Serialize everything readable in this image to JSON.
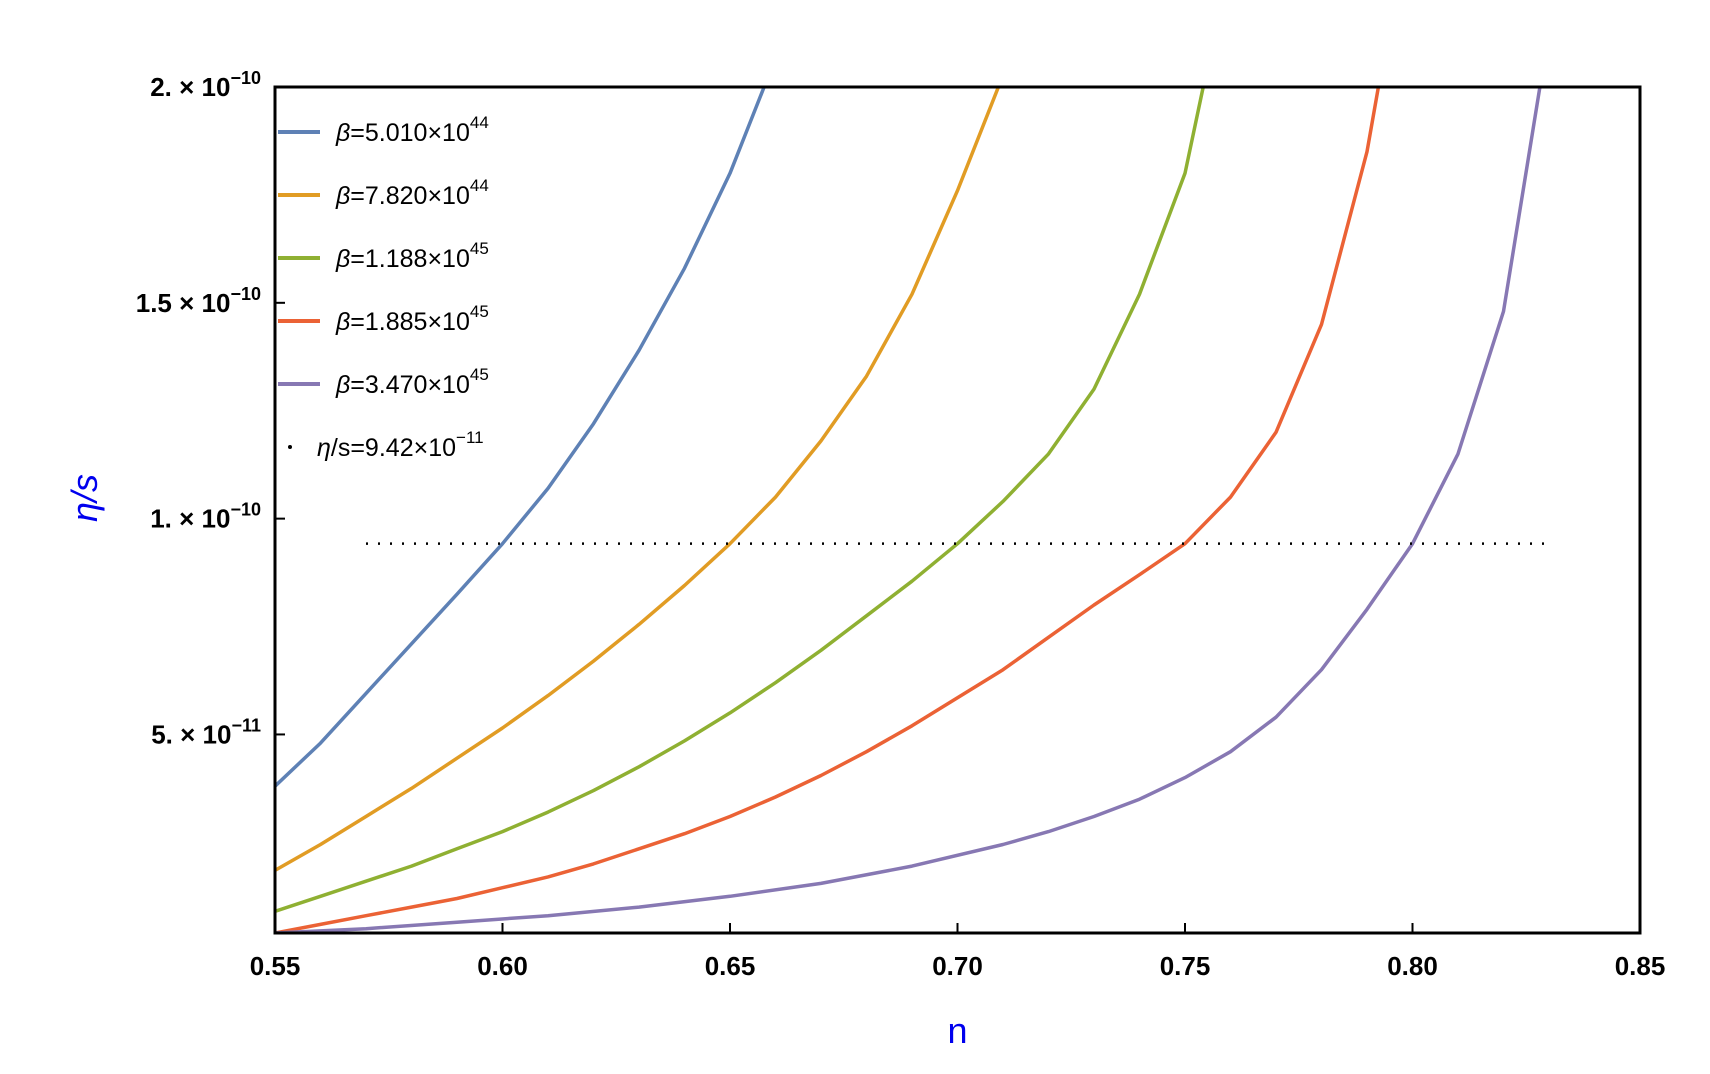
{
  "chart_data": {
    "type": "line",
    "xlabel": "n",
    "ylabel": "η/s",
    "xlim": [
      0.55,
      0.85
    ],
    "ylim": [
      4e-12,
      2e-10
    ],
    "x_ticks": [
      {
        "value": 0.55,
        "label": "0.55"
      },
      {
        "value": 0.6,
        "label": "0.60"
      },
      {
        "value": 0.65,
        "label": "0.65"
      },
      {
        "value": 0.7,
        "label": "0.70"
      },
      {
        "value": 0.75,
        "label": "0.75"
      },
      {
        "value": 0.8,
        "label": "0.80"
      },
      {
        "value": 0.85,
        "label": "0.85"
      }
    ],
    "y_ticks": [
      {
        "value": 5e-11,
        "mantissa": "5.",
        "exponent": "−11"
      },
      {
        "value": 1e-10,
        "mantissa": "1.",
        "exponent": "−10"
      },
      {
        "value": 1.5e-10,
        "mantissa": "1.5",
        "exponent": "−10"
      },
      {
        "value": 2e-10,
        "mantissa": "2.",
        "exponent": "−10"
      }
    ],
    "grid": false,
    "legend_position": "top-left",
    "series": [
      {
        "name": "β=5.010×10^44",
        "label_base": "=5.010×10",
        "label_exp": "44",
        "color": "#5e81b5",
        "points": [
          [
            0.55,
            3.8e-11
          ],
          [
            0.56,
            4.8e-11
          ],
          [
            0.57,
            5.95e-11
          ],
          [
            0.58,
            7.1e-11
          ],
          [
            0.59,
            8.25e-11
          ],
          [
            0.6,
            9.42e-11
          ],
          [
            0.61,
            1.07e-10
          ],
          [
            0.62,
            1.22e-10
          ],
          [
            0.63,
            1.39e-10
          ],
          [
            0.64,
            1.58e-10
          ],
          [
            0.65,
            1.8e-10
          ],
          [
            0.6575,
            2e-10
          ]
        ]
      },
      {
        "name": "β=7.820×10^44",
        "label_base": "=7.820×10",
        "label_exp": "44",
        "color": "#e19c24",
        "points": [
          [
            0.55,
            1.85e-11
          ],
          [
            0.56,
            2.45e-11
          ],
          [
            0.57,
            3.1e-11
          ],
          [
            0.58,
            3.75e-11
          ],
          [
            0.59,
            4.45e-11
          ],
          [
            0.6,
            5.15e-11
          ],
          [
            0.61,
            5.9e-11
          ],
          [
            0.62,
            6.7e-11
          ],
          [
            0.63,
            7.55e-11
          ],
          [
            0.64,
            8.45e-11
          ],
          [
            0.65,
            9.42e-11
          ],
          [
            0.66,
            1.05e-10
          ],
          [
            0.67,
            1.18e-10
          ],
          [
            0.68,
            1.33e-10
          ],
          [
            0.69,
            1.52e-10
          ],
          [
            0.7,
            1.76e-10
          ],
          [
            0.709,
            2e-10
          ]
        ]
      },
      {
        "name": "β=1.188×10^45",
        "label_base": "=1.188×10",
        "label_exp": "45",
        "color": "#8fb032",
        "points": [
          [
            0.55,
            9e-12
          ],
          [
            0.56,
            1.25e-11
          ],
          [
            0.57,
            1.6e-11
          ],
          [
            0.58,
            1.95e-11
          ],
          [
            0.59,
            2.35e-11
          ],
          [
            0.6,
            2.75e-11
          ],
          [
            0.61,
            3.2e-11
          ],
          [
            0.62,
            3.7e-11
          ],
          [
            0.63,
            4.25e-11
          ],
          [
            0.64,
            4.85e-11
          ],
          [
            0.65,
            5.5e-11
          ],
          [
            0.66,
            6.2e-11
          ],
          [
            0.67,
            6.95e-11
          ],
          [
            0.68,
            7.75e-11
          ],
          [
            0.69,
            8.55e-11
          ],
          [
            0.7,
            9.42e-11
          ],
          [
            0.71,
            1.04e-10
          ],
          [
            0.72,
            1.15e-10
          ],
          [
            0.73,
            1.3e-10
          ],
          [
            0.74,
            1.52e-10
          ],
          [
            0.75,
            1.8e-10
          ],
          [
            0.754,
            2e-10
          ]
        ]
      },
      {
        "name": "β=1.885×10^45",
        "label_base": "=1.885×10",
        "label_exp": "45",
        "color": "#eb6235",
        "points": [
          [
            0.55,
            4e-12
          ],
          [
            0.56,
            6e-12
          ],
          [
            0.57,
            8e-12
          ],
          [
            0.58,
            1e-11
          ],
          [
            0.59,
            1.2e-11
          ],
          [
            0.6,
            1.45e-11
          ],
          [
            0.61,
            1.7e-11
          ],
          [
            0.62,
            2e-11
          ],
          [
            0.63,
            2.35e-11
          ],
          [
            0.64,
            2.7e-11
          ],
          [
            0.65,
            3.1e-11
          ],
          [
            0.66,
            3.55e-11
          ],
          [
            0.67,
            4.05e-11
          ],
          [
            0.68,
            4.6e-11
          ],
          [
            0.69,
            5.2e-11
          ],
          [
            0.7,
            5.85e-11
          ],
          [
            0.71,
            6.5e-11
          ],
          [
            0.72,
            7.25e-11
          ],
          [
            0.73,
            8e-11
          ],
          [
            0.74,
            8.7e-11
          ],
          [
            0.75,
            9.42e-11
          ],
          [
            0.76,
            1.05e-10
          ],
          [
            0.77,
            1.2e-10
          ],
          [
            0.78,
            1.45e-10
          ],
          [
            0.79,
            1.85e-10
          ],
          [
            0.7925,
            2e-10
          ]
        ]
      },
      {
        "name": "β=3.470×10^45",
        "label_base": "=3.470×10",
        "label_exp": "45",
        "color": "#8778b3",
        "points": [
          [
            0.55,
            4e-12
          ],
          [
            0.57,
            5e-12
          ],
          [
            0.59,
            6.5e-12
          ],
          [
            0.61,
            8e-12
          ],
          [
            0.63,
            1e-11
          ],
          [
            0.65,
            1.25e-11
          ],
          [
            0.67,
            1.55e-11
          ],
          [
            0.69,
            1.95e-11
          ],
          [
            0.71,
            2.45e-11
          ],
          [
            0.72,
            2.75e-11
          ],
          [
            0.73,
            3.1e-11
          ],
          [
            0.74,
            3.5e-11
          ],
          [
            0.75,
            4e-11
          ],
          [
            0.76,
            4.6e-11
          ],
          [
            0.77,
            5.4e-11
          ],
          [
            0.78,
            6.5e-11
          ],
          [
            0.79,
            7.9e-11
          ],
          [
            0.8,
            9.42e-11
          ],
          [
            0.81,
            1.15e-10
          ],
          [
            0.82,
            1.48e-10
          ],
          [
            0.828,
            2e-10
          ]
        ]
      }
    ],
    "reference_line": {
      "name": "η/s=9.42×10^-11",
      "label_italic": "η",
      "label_base": "/s=9.42×10",
      "label_exp": "−11",
      "value": 9.42e-11,
      "x_range": [
        0.57,
        0.83
      ],
      "style": "dotted",
      "color": "#000000"
    }
  }
}
